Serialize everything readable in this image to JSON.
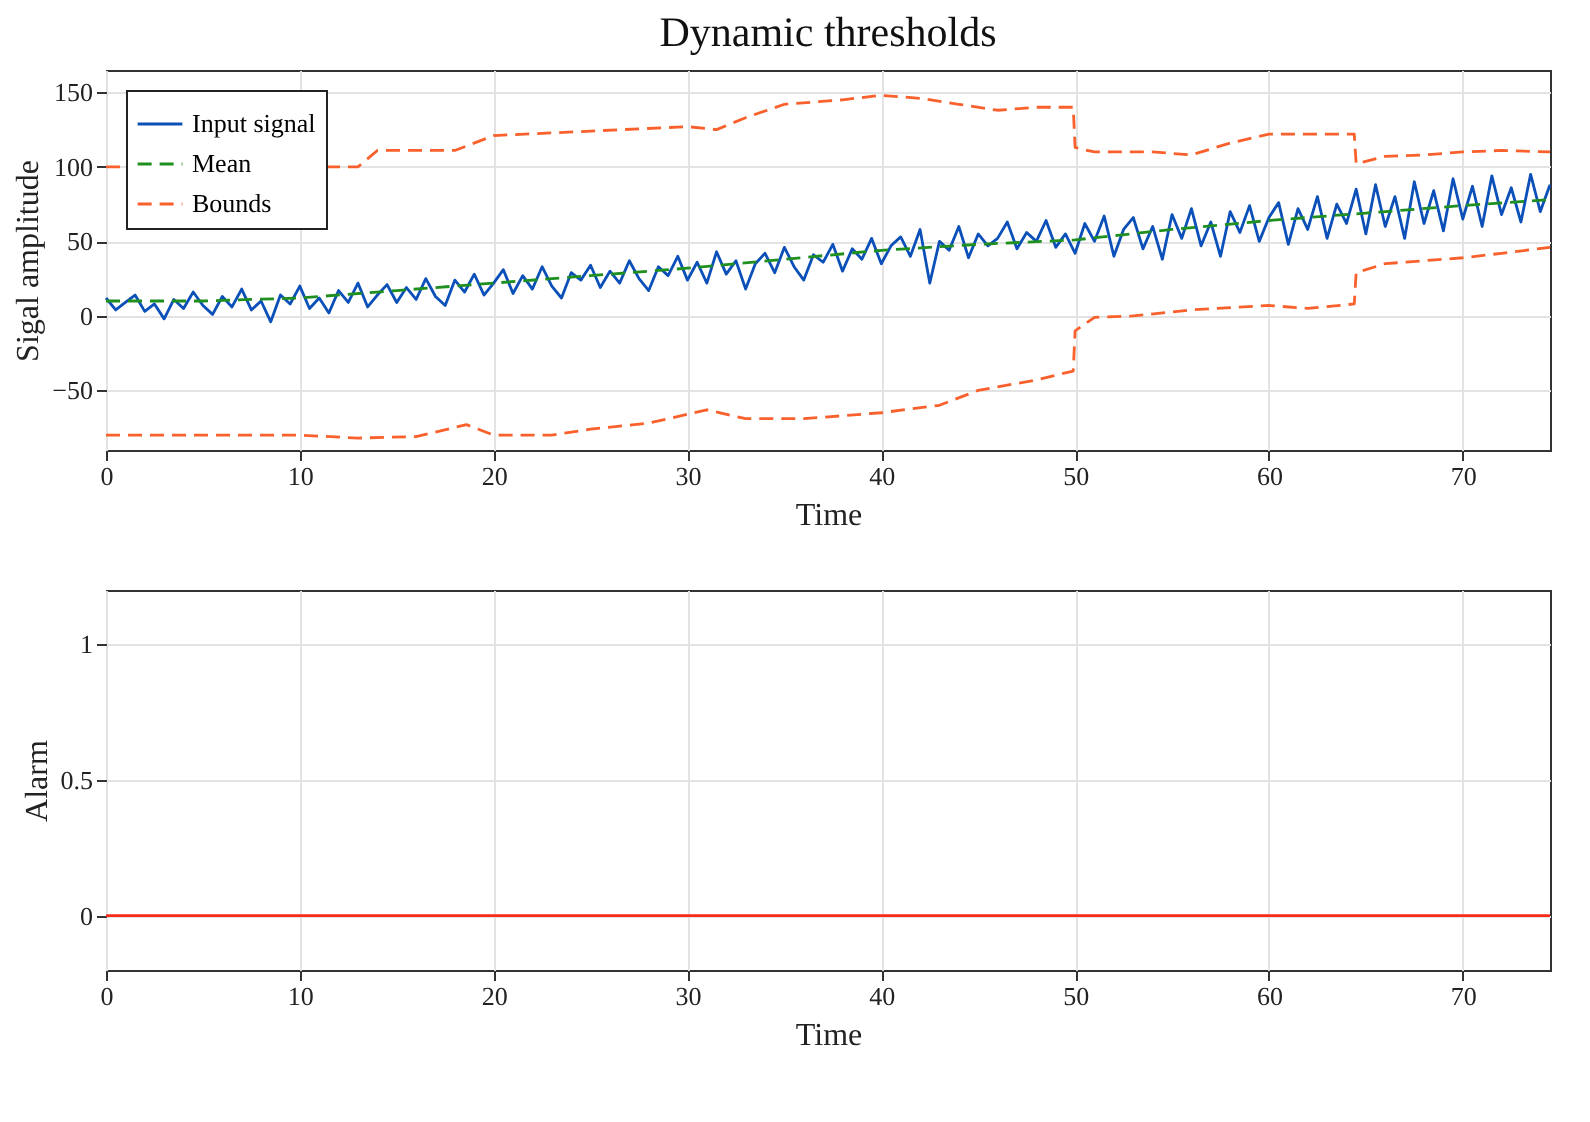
{
  "chart_data": [
    {
      "type": "line",
      "title": "Dynamic thresholds",
      "xlabel": "Time",
      "ylabel": "Sigal amplitude",
      "xlim": [
        0,
        74.5
      ],
      "xticks": [
        0,
        10,
        20,
        30,
        40,
        50,
        60,
        70
      ],
      "ylim": [
        -90,
        165
      ],
      "yticks": [
        -50,
        0,
        50,
        100,
        150
      ],
      "grid": true,
      "legend": "top left",
      "series": [
        {
          "name": "Input signal",
          "color": "#0b4fb8",
          "line_style": "solid",
          "x": [
            0,
            0.5,
            1,
            1.5,
            2,
            2.5,
            3,
            3.5,
            4,
            4.5,
            5,
            5.5,
            6,
            6.5,
            7,
            7.5,
            8,
            8.5,
            9,
            9.5,
            10,
            10.5,
            11,
            11.5,
            12,
            12.5,
            13,
            13.5,
            14,
            14.5,
            15,
            15.5,
            16,
            16.5,
            17,
            17.5,
            18,
            18.5,
            19,
            19.5,
            20,
            20.5,
            21,
            21.5,
            22,
            22.5,
            23,
            23.5,
            24,
            24.5,
            25,
            25.5,
            26,
            26.5,
            27,
            27.5,
            28,
            28.5,
            29,
            29.5,
            30,
            30.5,
            31,
            31.5,
            32,
            32.5,
            33,
            33.5,
            34,
            34.5,
            35,
            35.5,
            36,
            36.5,
            37,
            37.5,
            38,
            38.5,
            39,
            39.5,
            40,
            40.5,
            41,
            41.5,
            42,
            42.5,
            43,
            43.5,
            44,
            44.5,
            45,
            45.5,
            46,
            46.5,
            47,
            47.5,
            48,
            48.5,
            49,
            49.5,
            50,
            50.5,
            51,
            51.5,
            52,
            52.5,
            53,
            53.5,
            54,
            54.5,
            55,
            55.5,
            56,
            56.5,
            57,
            57.5,
            58,
            58.5,
            59,
            59.5,
            60,
            60.5,
            61,
            61.5,
            62,
            62.5,
            63,
            63.5,
            64,
            64.5,
            65,
            65.5,
            66,
            66.5,
            67,
            67.5,
            68,
            68.5,
            69,
            69.5,
            70,
            70.5,
            71,
            71.5,
            72,
            72.5,
            73,
            73.5,
            74,
            74.5
          ],
          "values": [
            12,
            4,
            9,
            14,
            3,
            8,
            -2,
            11,
            5,
            16,
            7,
            1,
            13,
            6,
            18,
            4,
            10,
            -4,
            14,
            8,
            20,
            5,
            12,
            2,
            17,
            9,
            22,
            6,
            14,
            21,
            9,
            19,
            11,
            25,
            13,
            7,
            24,
            16,
            28,
            14,
            22,
            31,
            15,
            27,
            18,
            33,
            20,
            12,
            29,
            24,
            34,
            19,
            30,
            22,
            37,
            25,
            17,
            33,
            27,
            40,
            24,
            36,
            22,
            43,
            28,
            37,
            18,
            35,
            42,
            29,
            46,
            33,
            24,
            41,
            36,
            48,
            30,
            45,
            38,
            52,
            35,
            47,
            53,
            40,
            58,
            22,
            50,
            44,
            60,
            39,
            55,
            47,
            52,
            63,
            45,
            56,
            50,
            64,
            46,
            55,
            42,
            62,
            50,
            67,
            40,
            58,
            66,
            45,
            60,
            38,
            68,
            52,
            72,
            47,
            63,
            40,
            70,
            56,
            74,
            50,
            66,
            76,
            48,
            72,
            58,
            80,
            52,
            75,
            62,
            85,
            55,
            88,
            60,
            80,
            52,
            90,
            62,
            84,
            57,
            92,
            65,
            87,
            60,
            94,
            68,
            86,
            63,
            95,
            70,
            88
          ]
        },
        {
          "name": "Mean",
          "color": "#1f8f1f",
          "line_style": "dashed",
          "x": [
            0,
            5,
            10,
            15,
            20,
            25,
            30,
            35,
            40,
            45,
            50,
            55,
            60,
            65,
            70,
            74.5
          ],
          "values": [
            10,
            10,
            12,
            17,
            22,
            27,
            32,
            38,
            44,
            48,
            51,
            58,
            64,
            69,
            74,
            78
          ]
        },
        {
          "name": "Bounds",
          "color": "#f9602c",
          "line_style": "dashed",
          "x": [
            0,
            13,
            14,
            18,
            20,
            25,
            30,
            31.5,
            33,
            35,
            38,
            40,
            42,
            44,
            46,
            48,
            49.9,
            50,
            51,
            54,
            56,
            58,
            60,
            62,
            64.4,
            64.5,
            66,
            68,
            70,
            72,
            74.5
          ],
          "values": [
            100,
            100,
            111,
            111,
            121,
            124,
            127,
            125,
            133,
            142,
            145,
            148,
            146,
            142,
            138,
            140,
            140,
            113,
            110,
            110,
            108,
            116,
            122,
            122,
            122,
            102,
            107,
            108,
            110,
            111,
            110
          ]
        },
        {
          "color": "#f9602c",
          "line_style": "dashed",
          "x": [
            0,
            10,
            13,
            16,
            18.6,
            20,
            23,
            25,
            28,
            31,
            33,
            36,
            40,
            43,
            45,
            48,
            49.9,
            50,
            51,
            53,
            56,
            60,
            62,
            64.4,
            64.5,
            66,
            70,
            72,
            74.5
          ],
          "values": [
            -80,
            -80,
            -82,
            -81,
            -73,
            -80,
            -80,
            -76,
            -72,
            -63,
            -69,
            -69,
            -65,
            -60,
            -50,
            -43,
            -37,
            -10,
            -1,
            0,
            4,
            7,
            5,
            8,
            29,
            35,
            39,
            42,
            46
          ]
        }
      ]
    },
    {
      "type": "line",
      "xlabel": "Time",
      "ylabel": "Alarm",
      "xlim": [
        0,
        74.5
      ],
      "xticks": [
        0,
        10,
        20,
        30,
        40,
        50,
        60,
        70
      ],
      "ylim": [
        -0.2,
        1.2
      ],
      "yticks": [
        0,
        0.5,
        1
      ],
      "grid": true,
      "series": [
        {
          "color": "#ff2a1a",
          "line_style": "solid",
          "x": [
            0,
            74.5
          ],
          "values": [
            0,
            0
          ]
        }
      ]
    }
  ]
}
